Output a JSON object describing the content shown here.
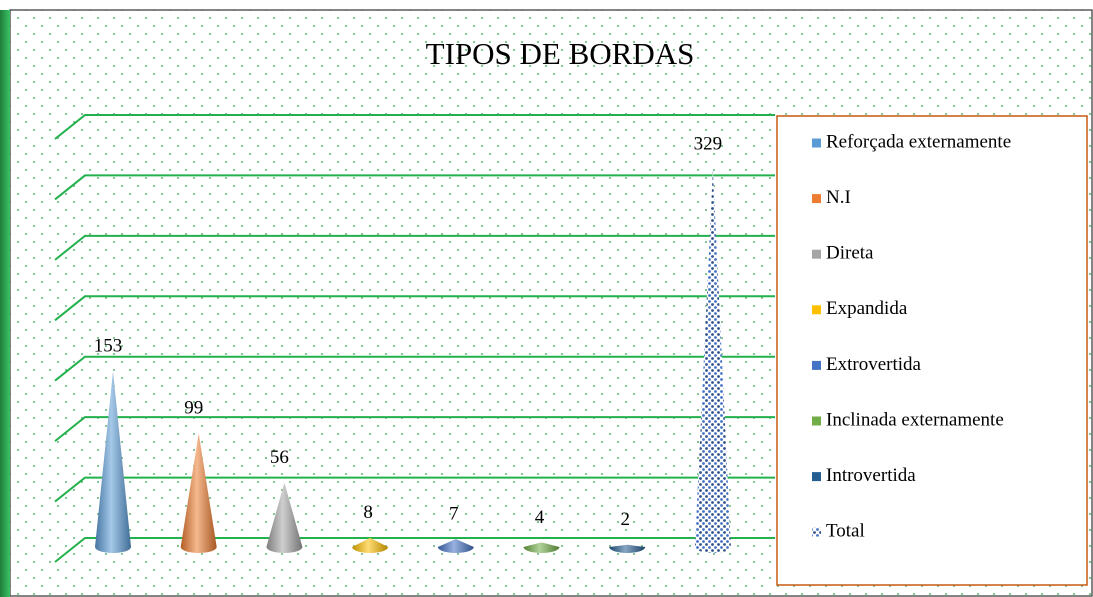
{
  "chart_data": {
    "type": "cone",
    "title": "TIPOS DE BORDAS",
    "ylim": [
      0,
      350
    ],
    "yticks": [
      0,
      50,
      100,
      150,
      200,
      250,
      300,
      350
    ],
    "grid": true,
    "grid_color": "#22b14c",
    "legend": "right",
    "series": [
      {
        "name": "Reforçada externamente",
        "color": "#5b9bd5",
        "values": [
          153
        ]
      },
      {
        "name": "N.I",
        "color": "#ed7d31",
        "values": [
          99
        ]
      },
      {
        "name": "Direta",
        "color": "#a5a5a5",
        "values": [
          56
        ]
      },
      {
        "name": "Expandida",
        "color": "#ffc000",
        "values": [
          8
        ]
      },
      {
        "name": "Extrovertida",
        "color": "#4472c4",
        "values": [
          7
        ]
      },
      {
        "name": "Inclinada externamente",
        "color": "#70ad47",
        "values": [
          4
        ]
      },
      {
        "name": "Introvertida",
        "color": "#255e91",
        "values": [
          2
        ]
      },
      {
        "name": "Total",
        "color": "#4472c4",
        "pattern": "dots",
        "values": [
          329
        ]
      }
    ]
  }
}
